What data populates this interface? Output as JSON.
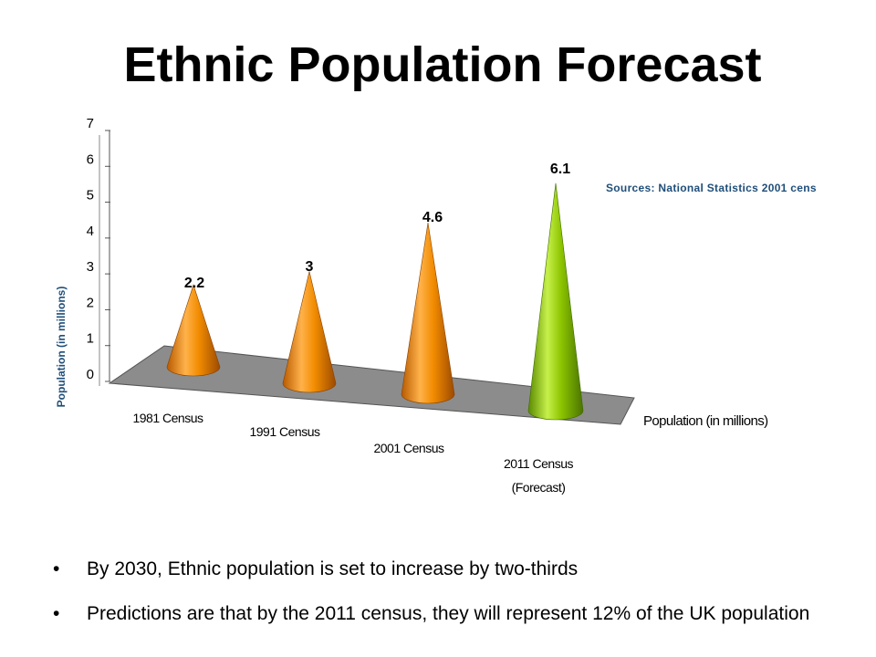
{
  "slide": {
    "title": "Ethnic Population Forecast",
    "source_note": "Sources: National Statistics 2001 cens",
    "bullets": [
      "By 2030, Ethnic population is set to increase by two-thirds",
      "Predictions are that by the 2011 census, they will represent 12% of the UK population"
    ]
  },
  "chart_data": {
    "type": "bar",
    "style": "3d-cone",
    "ylabel": "Population (in millions)",
    "series_axis_label": "Population (in millions)",
    "ylim": [
      0,
      7
    ],
    "yticks": [
      "0",
      "1",
      "2",
      "3",
      "4",
      "5",
      "6",
      "7"
    ],
    "categories": [
      [
        "1981 Census"
      ],
      [
        "1991 Census"
      ],
      [
        "2001 Census"
      ],
      [
        "2011 Census",
        "(Forecast)"
      ]
    ],
    "values": [
      2.2,
      3,
      4.6,
      6.1
    ],
    "data_labels": [
      "2.2",
      "3",
      "4.6",
      "6.1"
    ],
    "colors": {
      "actual": "#f28c00",
      "forecast": "#8cc400",
      "floor": "#8c8c8c",
      "axis_label": "#1f4e79"
    }
  }
}
